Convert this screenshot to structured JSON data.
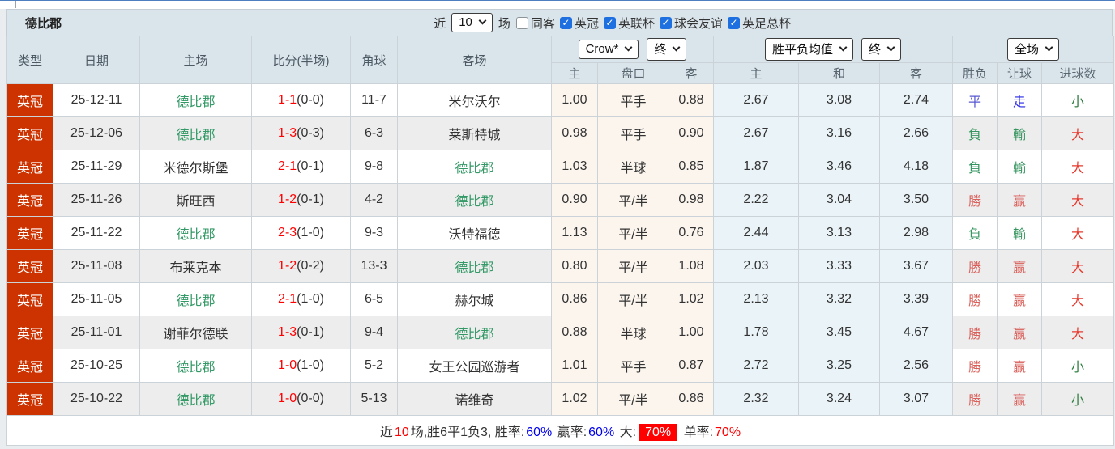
{
  "header": {
    "title": "德比郡",
    "recent_prefix": "近",
    "recent_value": "10",
    "recent_suffix": "场",
    "checkboxes": [
      {
        "label": "同客",
        "checked": false
      },
      {
        "label": "英冠",
        "checked": true
      },
      {
        "label": "英联杯",
        "checked": true
      },
      {
        "label": "球会友谊",
        "checked": true
      },
      {
        "label": "英足总杯",
        "checked": true
      }
    ]
  },
  "table": {
    "col_headers": [
      "类型",
      "日期",
      "主场",
      "比分(半场)",
      "角球",
      "客场"
    ],
    "selects": {
      "company": "Crow*",
      "final1": "终",
      "avg": "胜平负均值",
      "final2": "终",
      "scope": "全场"
    },
    "sub_headers": [
      "主",
      "盘口",
      "客",
      "主",
      "和",
      "客",
      "胜负",
      "让球",
      "进球数"
    ],
    "rows": [
      {
        "league": "英冠",
        "date": "25-12-11",
        "home": "德比郡",
        "home_self": true,
        "ft": "1-1",
        "ht": "(0-0)",
        "corner": "11-7",
        "away": "米尔沃尔",
        "away_self": false,
        "ah_home": "1.00",
        "handicap": "平手",
        "ah_away": "0.88",
        "avg_home": "2.67",
        "avg_draw": "3.08",
        "avg_away": "2.74",
        "result": "平",
        "result_c": "draw",
        "spread": "走",
        "spread_c": "push",
        "goals": "小",
        "goals_c": "small"
      },
      {
        "league": "英冠",
        "date": "25-12-06",
        "home": "德比郡",
        "home_self": true,
        "ft": "1-3",
        "ht": "(0-3)",
        "corner": "6-3",
        "away": "莱斯特城",
        "away_self": false,
        "ah_home": "0.98",
        "handicap": "平手",
        "ah_away": "0.90",
        "avg_home": "2.67",
        "avg_draw": "3.16",
        "avg_away": "2.66",
        "result": "負",
        "result_c": "lose",
        "spread": "輸",
        "spread_c": "lose",
        "goals": "大",
        "goals_c": "big"
      },
      {
        "league": "英冠",
        "date": "25-11-29",
        "home": "米德尔斯堡",
        "home_self": false,
        "ft": "2-1",
        "ht": "(0-1)",
        "corner": "9-8",
        "away": "德比郡",
        "away_self": true,
        "ah_home": "1.03",
        "handicap": "半球",
        "ah_away": "0.85",
        "avg_home": "1.87",
        "avg_draw": "3.46",
        "avg_away": "4.18",
        "result": "負",
        "result_c": "lose",
        "spread": "輸",
        "spread_c": "lose",
        "goals": "大",
        "goals_c": "big"
      },
      {
        "league": "英冠",
        "date": "25-11-26",
        "home": "斯旺西",
        "home_self": false,
        "ft": "1-2",
        "ht": "(0-1)",
        "corner": "4-2",
        "away": "德比郡",
        "away_self": true,
        "ah_home": "0.90",
        "handicap": "平/半",
        "ah_away": "0.98",
        "avg_home": "2.22",
        "avg_draw": "3.04",
        "avg_away": "3.50",
        "result": "勝",
        "result_c": "win",
        "spread": "赢",
        "spread_c": "win",
        "goals": "大",
        "goals_c": "big"
      },
      {
        "league": "英冠",
        "date": "25-11-22",
        "home": "德比郡",
        "home_self": true,
        "ft": "2-3",
        "ht": "(1-0)",
        "corner": "9-3",
        "away": "沃特福德",
        "away_self": false,
        "ah_home": "1.13",
        "handicap": "平/半",
        "ah_away": "0.76",
        "avg_home": "2.44",
        "avg_draw": "3.13",
        "avg_away": "2.98",
        "result": "負",
        "result_c": "lose",
        "spread": "輸",
        "spread_c": "lose",
        "goals": "大",
        "goals_c": "big"
      },
      {
        "league": "英冠",
        "date": "25-11-08",
        "home": "布莱克本",
        "home_self": false,
        "ft": "1-2",
        "ht": "(0-2)",
        "corner": "13-3",
        "away": "德比郡",
        "away_self": true,
        "ah_home": "0.80",
        "handicap": "平/半",
        "ah_away": "1.08",
        "avg_home": "2.03",
        "avg_draw": "3.33",
        "avg_away": "3.67",
        "result": "勝",
        "result_c": "win",
        "spread": "赢",
        "spread_c": "win",
        "goals": "大",
        "goals_c": "big"
      },
      {
        "league": "英冠",
        "date": "25-11-05",
        "home": "德比郡",
        "home_self": true,
        "ft": "2-1",
        "ht": "(1-0)",
        "corner": "6-5",
        "away": "赫尔城",
        "away_self": false,
        "ah_home": "0.86",
        "handicap": "平/半",
        "ah_away": "1.02",
        "avg_home": "2.13",
        "avg_draw": "3.32",
        "avg_away": "3.39",
        "result": "勝",
        "result_c": "win",
        "spread": "赢",
        "spread_c": "win",
        "goals": "大",
        "goals_c": "big"
      },
      {
        "league": "英冠",
        "date": "25-11-01",
        "home": "谢菲尔德联",
        "home_self": false,
        "ft": "1-3",
        "ht": "(0-1)",
        "corner": "9-4",
        "away": "德比郡",
        "away_self": true,
        "ah_home": "0.88",
        "handicap": "半球",
        "ah_away": "1.00",
        "avg_home": "1.78",
        "avg_draw": "3.45",
        "avg_away": "4.67",
        "result": "勝",
        "result_c": "win",
        "spread": "赢",
        "spread_c": "win",
        "goals": "大",
        "goals_c": "big"
      },
      {
        "league": "英冠",
        "date": "25-10-25",
        "home": "德比郡",
        "home_self": true,
        "ft": "1-0",
        "ht": "(1-0)",
        "corner": "5-2",
        "away": "女王公园巡游者",
        "away_self": false,
        "ah_home": "1.01",
        "handicap": "平手",
        "ah_away": "0.87",
        "avg_home": "2.72",
        "avg_draw": "3.25",
        "avg_away": "2.56",
        "result": "勝",
        "result_c": "win",
        "spread": "赢",
        "spread_c": "win",
        "goals": "小",
        "goals_c": "small"
      },
      {
        "league": "英冠",
        "date": "25-10-22",
        "home": "德比郡",
        "home_self": true,
        "ft": "1-0",
        "ht": "(0-0)",
        "corner": "5-13",
        "away": "诺维奇",
        "away_self": false,
        "ah_home": "1.02",
        "handicap": "平/半",
        "ah_away": "0.86",
        "avg_home": "2.32",
        "avg_draw": "3.24",
        "avg_away": "3.07",
        "result": "勝",
        "result_c": "win",
        "spread": "赢",
        "spread_c": "win",
        "goals": "小",
        "goals_c": "small"
      }
    ]
  },
  "summary": {
    "t1": "近",
    "n1": "10",
    "t2": "场,胜6平1负3, 胜率:",
    "b1": "60%",
    "t3": "赢率:",
    "b2": "60%",
    "t4": "大:",
    "badge": "70%",
    "t5": "单率:",
    "r1": "70%"
  },
  "colors": {
    "self_team": "#339966",
    "score_red": "#ff0000",
    "win": "#d9605a",
    "lose": "#36955f",
    "draw": "#5757d2",
    "push": "#2525e6",
    "big": "#e6392e",
    "small": "#2f7d3f",
    "league_badge": "#cc3300",
    "rate_blue": "#0000ee",
    "rate_red": "#ff0000",
    "checkbox_blue": "#1e6fe0",
    "header_bg": "#dae5eb",
    "handicap_col_bg": "#fbf5ee",
    "avg_col_bg": "#eaf3f8"
  }
}
